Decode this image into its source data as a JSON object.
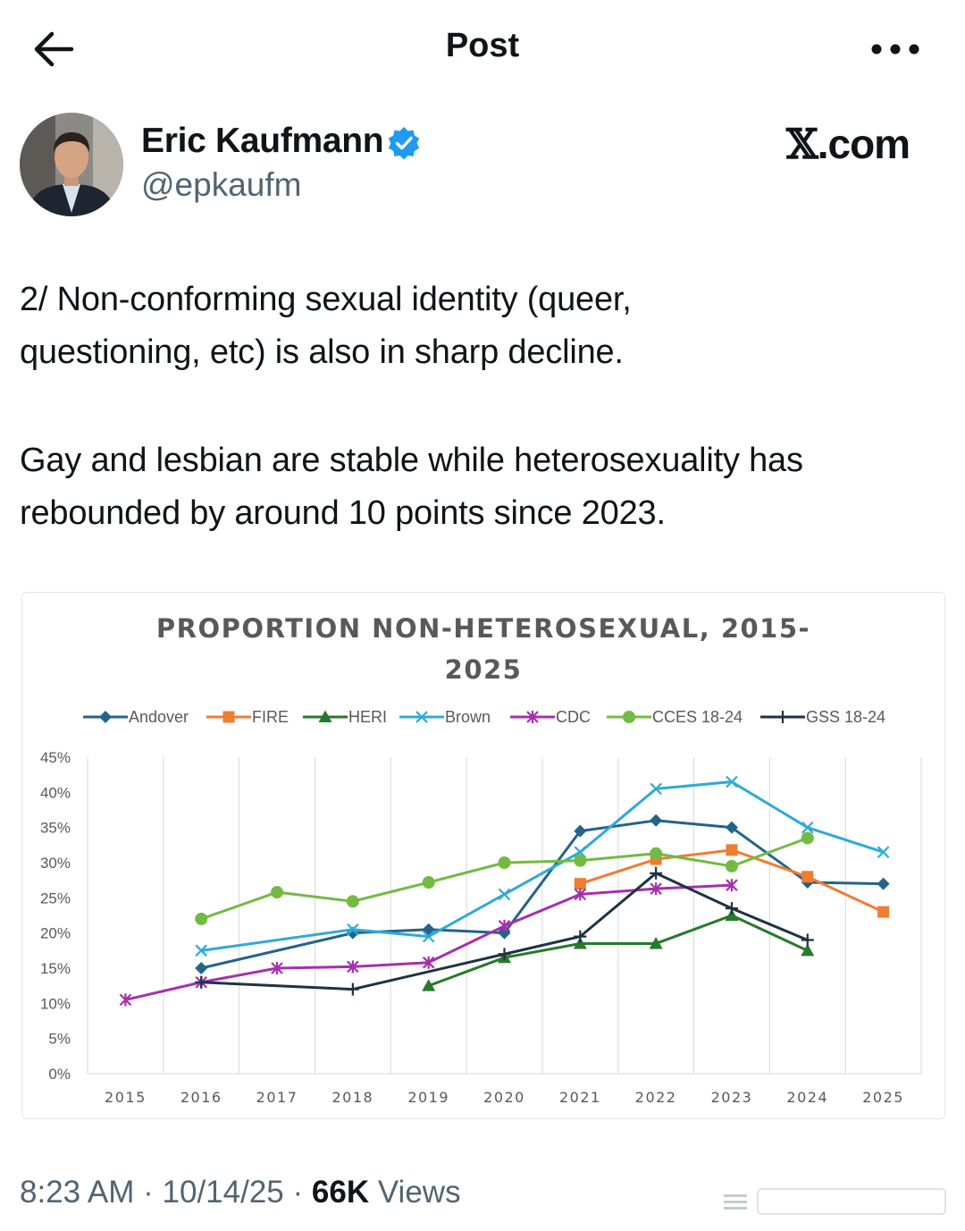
{
  "header": {
    "title": "Post"
  },
  "author": {
    "name": "Eric Kaufmann",
    "handle": "@epkaufm"
  },
  "brand": {
    "x": "𝕏",
    "domain": ".com"
  },
  "post": {
    "line1": "2/ Non-conforming sexual identity (queer,",
    "line2": "questioning, etc) is also in sharp decline.",
    "line3": "Gay and lesbian are stable while heterosexuality has",
    "line4": "rebounded by around 10 points since 2023."
  },
  "footer": {
    "time": "8:23 AM",
    "sep1": " · ",
    "date": "10/14/25",
    "sep2": " · ",
    "views_count": "66K",
    "views_label": " Views"
  },
  "colors": {
    "accent": "#1d9bf0",
    "muted": "#536471"
  },
  "icons": {
    "back": "arrow-left-icon",
    "more": "more-dots-icon",
    "verified": "verified-badge-icon"
  },
  "chart_data": {
    "type": "line",
    "title_line1": "PROPORTION NON-HETEROSEXUAL, 2015-",
    "title_line2": "2025",
    "x": [
      2015,
      2016,
      2017,
      2018,
      2019,
      2020,
      2021,
      2022,
      2023,
      2024,
      2025
    ],
    "y_ticks": [
      "0%",
      "5%",
      "10%",
      "15%",
      "20%",
      "25%",
      "30%",
      "35%",
      "40%",
      "45%"
    ],
    "ylim": [
      0,
      45
    ],
    "grid": "vertical",
    "legend_position": "top",
    "series": [
      {
        "name": "Andover",
        "color": "#236489",
        "marker": "diamond",
        "x": [
          2016,
          2018,
          2019,
          2020,
          2021,
          2022,
          2023,
          2024,
          2025
        ],
        "values": [
          15,
          20,
          20.5,
          20,
          34.5,
          36,
          35,
          27.2,
          27
        ]
      },
      {
        "name": "FIRE",
        "color": "#ee7d31",
        "marker": "square",
        "x": [
          2021,
          2022,
          2023,
          2024,
          2025
        ],
        "values": [
          27,
          30.5,
          31.8,
          28,
          23
        ]
      },
      {
        "name": "HERI",
        "color": "#267a2c",
        "marker": "triangle",
        "x": [
          2019,
          2020,
          2021,
          2022,
          2023,
          2024
        ],
        "values": [
          12.5,
          16.5,
          18.5,
          18.5,
          22.5,
          17.5
        ]
      },
      {
        "name": "Brown",
        "color": "#2eaad8",
        "marker": "x",
        "x": [
          2016,
          2018,
          2019,
          2020,
          2021,
          2022,
          2023,
          2024,
          2025
        ],
        "values": [
          17.5,
          20.5,
          19.5,
          25.5,
          31.5,
          40.5,
          41.5,
          35,
          31.5
        ]
      },
      {
        "name": "CDC",
        "color": "#a530ad",
        "marker": "star",
        "x": [
          2015,
          2016,
          2017,
          2018,
          2019,
          2020,
          2021,
          2022,
          2023
        ],
        "values": [
          10.5,
          13,
          15,
          15.2,
          15.8,
          21,
          25.5,
          26.3,
          26.8
        ]
      },
      {
        "name": "CCES 18-24",
        "color": "#73ba42",
        "marker": "circle",
        "x": [
          2016,
          2017,
          2018,
          2019,
          2020,
          2021,
          2022,
          2023,
          2024
        ],
        "values": [
          22,
          25.8,
          24.5,
          27.2,
          30,
          30.3,
          31.3,
          29.5,
          33.5
        ]
      },
      {
        "name": "GSS 18-24",
        "color": "#1d3344",
        "marker": "plus",
        "x": [
          2016,
          2018,
          2020,
          2021,
          2022,
          2023,
          2024
        ],
        "values": [
          13,
          12,
          17,
          19.5,
          28.5,
          23.5,
          19
        ]
      }
    ]
  }
}
